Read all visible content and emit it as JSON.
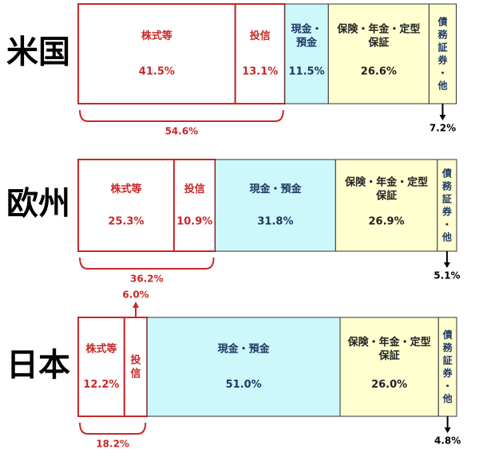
{
  "chart_data": {
    "type": "stacked-bar-100",
    "categories": [
      "米国",
      "欧州",
      "日本"
    ],
    "series": [
      {
        "name": "株式等",
        "color": "#ffffff",
        "edge_color": "#c82828",
        "text_color": "#c82828",
        "values": [
          41.5,
          25.3,
          12.2
        ],
        "value_labels": [
          "41.5%",
          "25.3%",
          "12.2%"
        ]
      },
      {
        "name": "投信",
        "color": "#ffffff",
        "edge_color": "#c82828",
        "text_color": "#c82828",
        "values": [
          13.1,
          10.9,
          6.0
        ],
        "value_labels": [
          "13.1%",
          "10.9%",
          "6.0%"
        ]
      },
      {
        "name": "現金・預金",
        "color": "#ccf7fb",
        "edge_color": "#333333",
        "text_color": "#1f3864",
        "values": [
          11.5,
          31.8,
          51.0
        ],
        "value_labels": [
          "11.5%",
          "31.8%",
          "51.0%"
        ]
      },
      {
        "name": "保険・年金・定型保証",
        "color": "#ffffd0",
        "edge_color": "#333333",
        "text_color": "#222222",
        "values": [
          26.6,
          26.9,
          26.0
        ],
        "value_labels": [
          "26.6%",
          "26.9%",
          "26.0%"
        ]
      },
      {
        "name": "債務証券・他",
        "color": "#ffffd0",
        "edge_color": "#333333",
        "text_color": "#1f3864",
        "values": [
          7.2,
          5.1,
          4.8
        ],
        "value_labels": [
          "7.2%",
          "5.1%",
          "4.8%"
        ]
      }
    ],
    "bracket_values": [
      54.6,
      36.2,
      18.2
    ],
    "bracket_value_labels": [
      "54.6%",
      "36.2%",
      "18.2%"
    ]
  }
}
